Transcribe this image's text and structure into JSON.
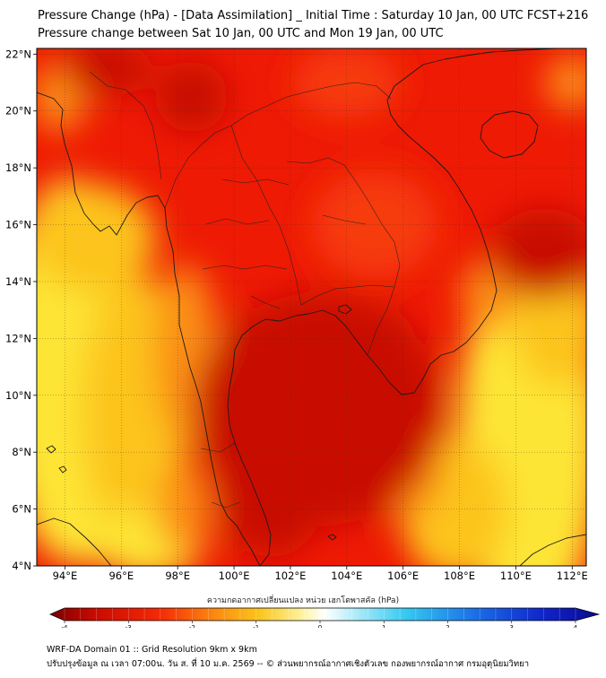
{
  "title": {
    "line1": "Pressure Change (hPa) - [Data Assimilation] _ Initial Time : Saturday 10 Jan, 00 UTC FCST+216",
    "line2": "Pressure change between Sat 10 Jan, 00 UTC and Mon 19 Jan, 00 UTC"
  },
  "map": {
    "lon_range": [
      93,
      112.5
    ],
    "lat_range": [
      4,
      22.2
    ],
    "lat_ticks": [
      "22°N",
      "20°N",
      "18°N",
      "16°N",
      "14°N",
      "12°N",
      "10°N",
      "8°N",
      "6°N",
      "4°N"
    ],
    "lon_ticks": [
      "94°E",
      "96°E",
      "98°E",
      "100°E",
      "102°E",
      "104°E",
      "106°E",
      "108°E",
      "110°E",
      "112°E"
    ],
    "grid_lines": true,
    "field_colors": {
      "strong_fall": "#c80a00",
      "fall": "#ee1a04",
      "moderate_fall": "#f63a0a",
      "slight_fall": "#fb8e12",
      "weak_fall": "#fcc41c",
      "near_zero": "#fde534"
    }
  },
  "colorbar": {
    "title": "ความกดอากาศเปลี่ยนแปลง หน่วย เฮกโตพาสคัล (hPa)",
    "range": [
      -4,
      4
    ],
    "tick_labels": [
      "-4",
      "-3",
      "-2",
      "-1",
      "0",
      "1",
      "2",
      "3",
      "4"
    ]
  },
  "footer": {
    "line1": "WRF-DA Domain 01 :: Grid Resolution 9km x 9km",
    "line2": "ปรับปรุงข้อมูล ณ เวลา 07:00น. วัน ส. ที่ 10 ม.ค. 2569 -- © ส่วนพยากรณ์อากาศเชิงตัวเลข กองพยากรณ์อากาศ กรมอุตุนิยมวิทยา"
  }
}
